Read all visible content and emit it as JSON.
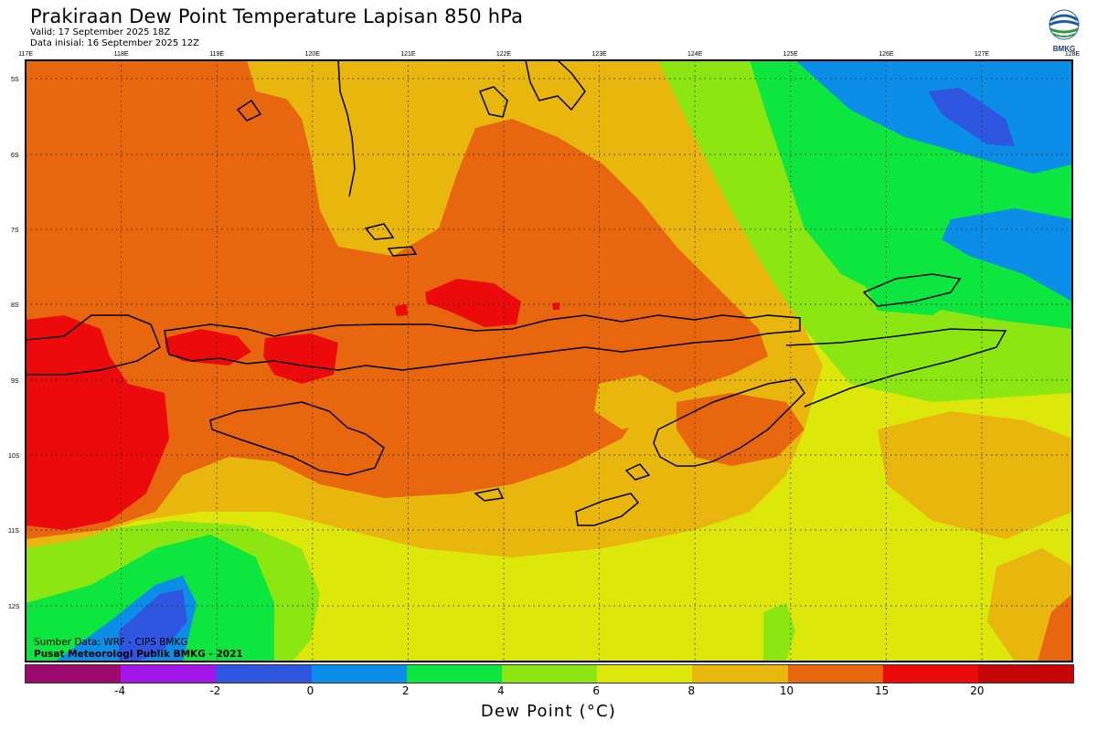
{
  "header": {
    "title": "Prakiraan Dew Point Temperature Lapisan 850 hPa",
    "valid": "Valid: 17 September 2025 18Z",
    "init": "Data inisial: 16 September 2025 12Z"
  },
  "logo": {
    "text": "BMKG",
    "icon": "bmkg-logo-icon"
  },
  "map": {
    "lon_labels": [
      "117E",
      "118E",
      "119E",
      "120E",
      "121E",
      "122E",
      "123E",
      "124E",
      "125E",
      "126E",
      "127E",
      "128E"
    ],
    "lat_labels": [
      "5S",
      "6S",
      "7S",
      "8S",
      "9S",
      "10S",
      "11S",
      "12S"
    ],
    "field": "dew point temperature",
    "field_pattern": "orange and red over the Java Sea, Bali, Lombok and Sumbawa; yellow-green to the south and east; green and blue toward the Banda Sea (northeast) and the open ocean (southwest)"
  },
  "credits": {
    "source": "Sumber Data: WRF - CIPS BMKG",
    "org": "Pusat Meteorologi Publik BMKG - 2021"
  },
  "colorbar": {
    "colors": [
      "#9c0a6e",
      "#a316e8",
      "#2f56e0",
      "#0a8ee8",
      "#0ce63f",
      "#8be611",
      "#dde80a",
      "#e8b60c",
      "#e8660d",
      "#ed0a0a",
      "#c40606"
    ],
    "ticks": [
      "-4",
      "-2",
      "0",
      "2",
      "4",
      "6",
      "8",
      "10",
      "15",
      "20"
    ],
    "title": "Dew Point (°C)"
  },
  "colors": {
    "frame": "#000000",
    "coastline": "#000000",
    "gridline": "#222222"
  }
}
